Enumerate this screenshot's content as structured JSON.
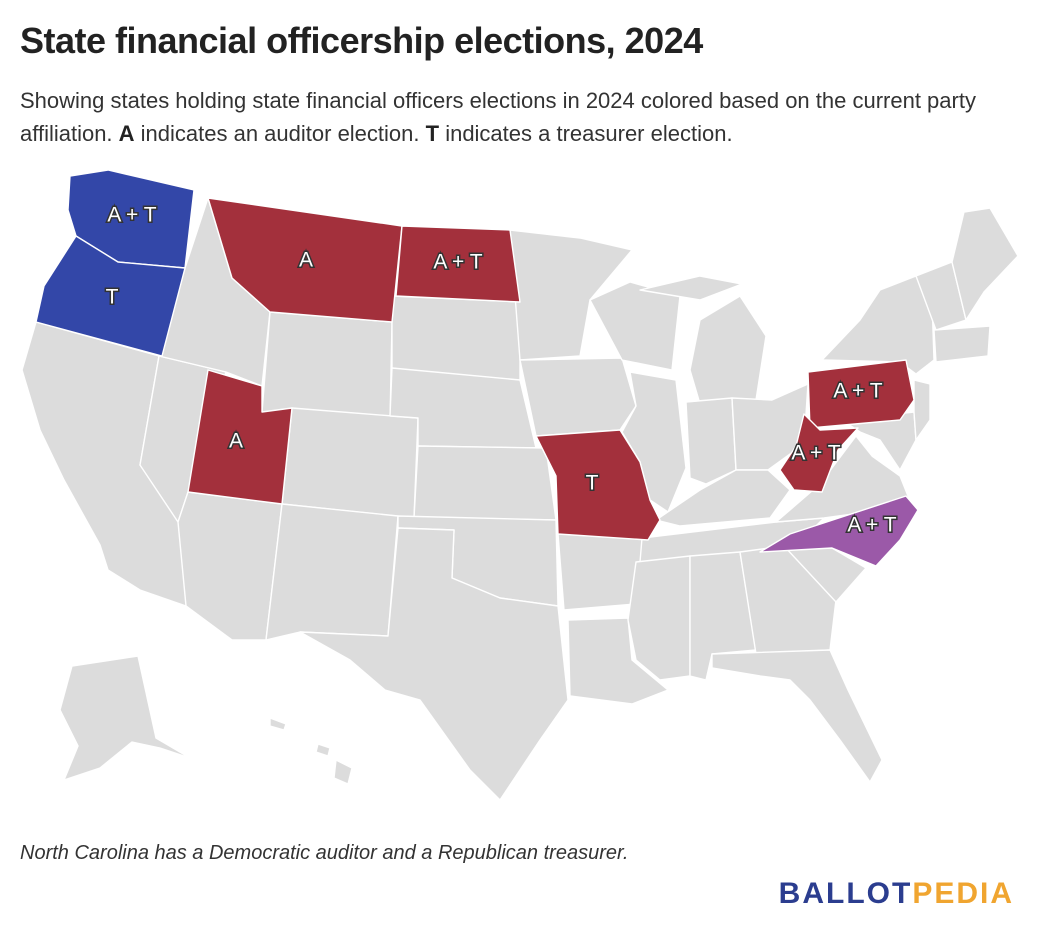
{
  "title": "State financial officership elections, 2024",
  "subtitle": {
    "part1": "Showing states holding state financial officers elections in 2024 colored based on the current party affiliation. ",
    "a_key": "A",
    "part2": " indicates an auditor election. ",
    "t_key": "T",
    "part3": " indicates a treasurer election."
  },
  "footnote": "North Carolina has a Democratic auditor and a Republican treasurer.",
  "brand": {
    "part1": "BALLOT",
    "part2": "PEDIA"
  },
  "colors": {
    "democratic": "#3347a8",
    "republican": "#a3303c",
    "split": "#9b59a8",
    "none": "#dcdcdc",
    "brand_blue": "#2b3d8f",
    "brand_gold": "#f0a530"
  },
  "states": [
    {
      "id": "WA",
      "party": "democratic",
      "label": "A + T"
    },
    {
      "id": "OR",
      "party": "democratic",
      "label": "T"
    },
    {
      "id": "MT",
      "party": "republican",
      "label": "A"
    },
    {
      "id": "ND",
      "party": "republican",
      "label": "A + T"
    },
    {
      "id": "UT",
      "party": "republican",
      "label": "A"
    },
    {
      "id": "MO",
      "party": "republican",
      "label": "T"
    },
    {
      "id": "PA",
      "party": "republican",
      "label": "A + T"
    },
    {
      "id": "WV",
      "party": "republican",
      "label": "A + T"
    },
    {
      "id": "NC",
      "party": "split",
      "label": "A + T"
    }
  ]
}
